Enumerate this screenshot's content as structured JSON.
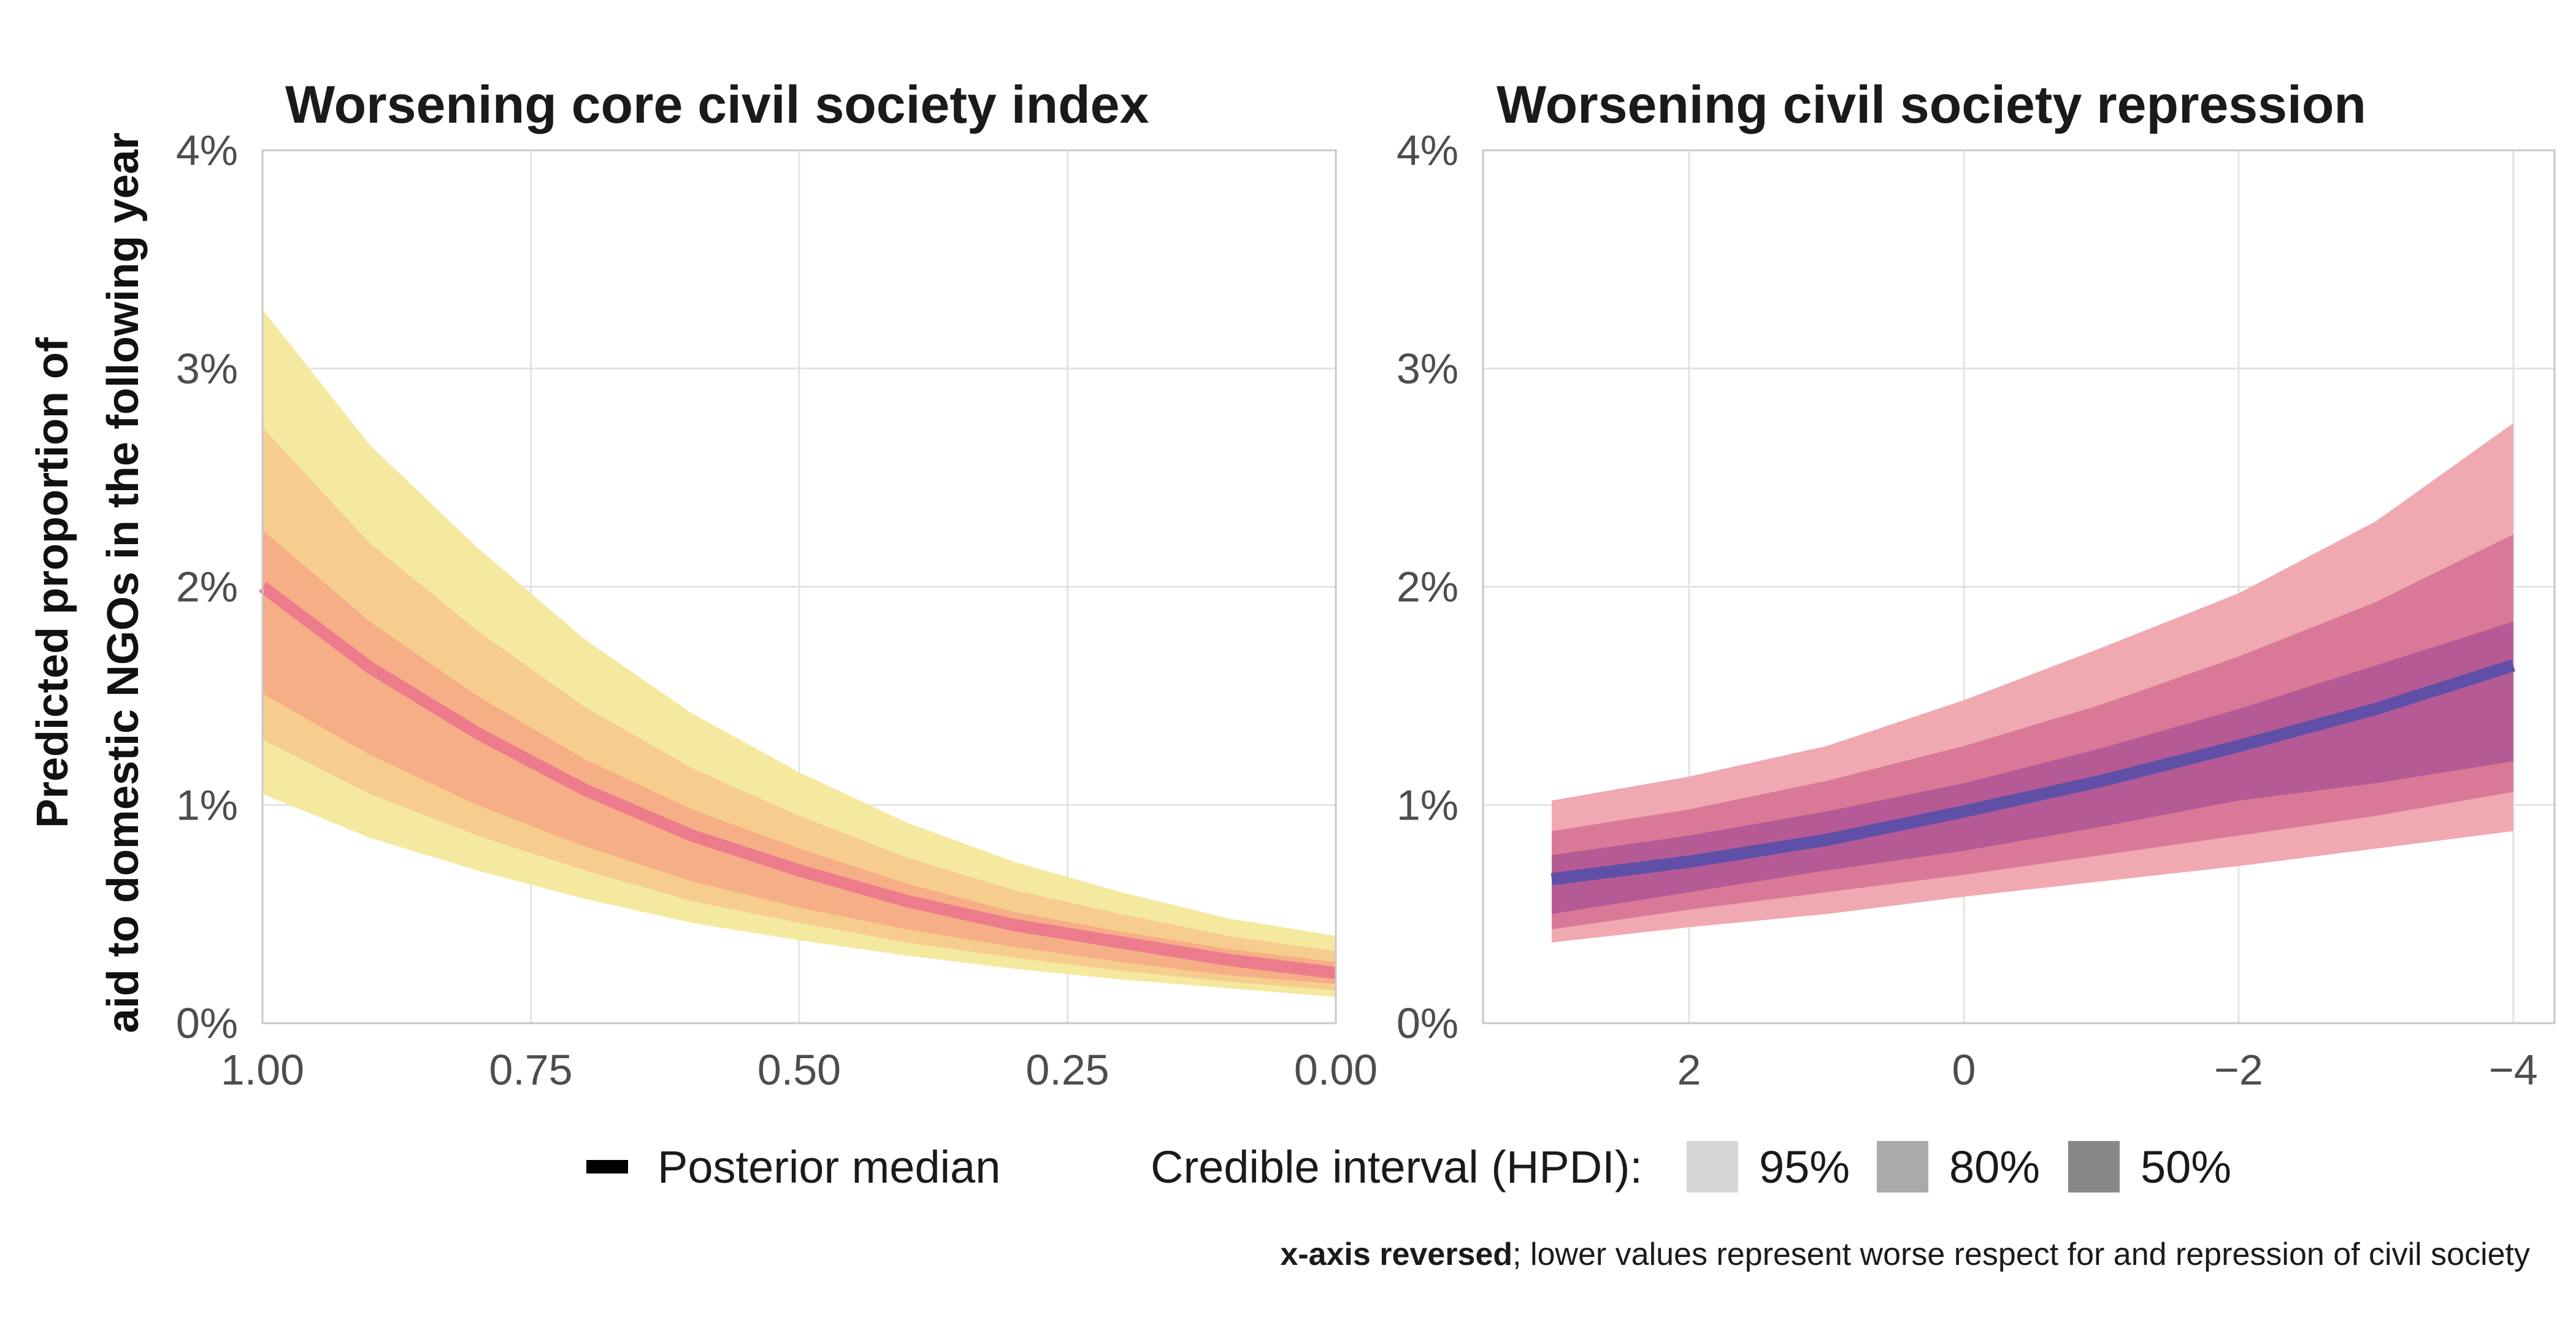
{
  "y_axis_label_lines": [
    "Predicted proportion of",
    "aid to domestic NGOs in the following year"
  ],
  "legend": {
    "median_label": "Posterior median",
    "interval_title": "Credible interval (HPDI):",
    "levels": [
      "95%",
      "80%",
      "50%"
    ],
    "swatch_colors": [
      "#d6d6d6",
      "#aaaaaa",
      "#888888"
    ]
  },
  "caption": {
    "bold": "x-axis reversed",
    "rest": "; lower values represent worse respect for and repression of civil society"
  },
  "chart_data": [
    {
      "type": "area",
      "title": "Worsening core civil society index",
      "xlabel": "",
      "ylabel": "Predicted proportion of aid to domestic NGOs in the following year",
      "x_reversed": true,
      "xlim": [
        1.0,
        0.0
      ],
      "ylim": [
        0,
        4
      ],
      "y_unit": "%",
      "grid": true,
      "x_ticks": [
        1.0,
        0.75,
        0.5,
        0.25,
        0.0
      ],
      "x_tick_labels": [
        "1.00",
        "0.75",
        "0.50",
        "0.25",
        "0.00"
      ],
      "y_ticks": [
        0,
        1,
        2,
        3,
        4
      ],
      "y_tick_labels": [
        "0%",
        "1%",
        "2%",
        "3%",
        "4%"
      ],
      "colors": {
        "band95": "#f5e9a0",
        "band80": "#f6cd8f",
        "band50": "#f6ae86",
        "median": "#ec7c8c"
      },
      "x": [
        1.0,
        0.9,
        0.8,
        0.7,
        0.6,
        0.5,
        0.4,
        0.3,
        0.2,
        0.1,
        0.0
      ],
      "series": [
        {
          "name": "Posterior median",
          "values": [
            2.0,
            1.63,
            1.33,
            1.07,
            0.86,
            0.7,
            0.56,
            0.45,
            0.37,
            0.29,
            0.23
          ]
        },
        {
          "name": "95%",
          "lower": [
            1.05,
            0.85,
            0.7,
            0.57,
            0.46,
            0.38,
            0.31,
            0.25,
            0.2,
            0.16,
            0.12
          ],
          "upper": [
            3.27,
            2.65,
            2.18,
            1.76,
            1.42,
            1.15,
            0.92,
            0.74,
            0.6,
            0.48,
            0.4
          ]
        },
        {
          "name": "80%",
          "lower": [
            1.3,
            1.05,
            0.86,
            0.7,
            0.56,
            0.46,
            0.37,
            0.3,
            0.24,
            0.19,
            0.15
          ],
          "upper": [
            2.73,
            2.2,
            1.8,
            1.45,
            1.17,
            0.95,
            0.76,
            0.61,
            0.5,
            0.4,
            0.33
          ]
        },
        {
          "name": "50%",
          "lower": [
            1.51,
            1.23,
            1.0,
            0.81,
            0.65,
            0.53,
            0.43,
            0.35,
            0.28,
            0.22,
            0.18
          ],
          "upper": [
            2.26,
            1.84,
            1.5,
            1.21,
            0.98,
            0.8,
            0.64,
            0.51,
            0.42,
            0.34,
            0.28
          ]
        }
      ]
    },
    {
      "type": "area",
      "title": "Worsening civil society repression",
      "xlabel": "",
      "ylabel": "",
      "x_reversed": true,
      "xlim": [
        3.5,
        -4.3
      ],
      "ylim": [
        0,
        4
      ],
      "y_unit": "%",
      "grid": true,
      "x_ticks": [
        2,
        0,
        -2,
        -4
      ],
      "x_tick_labels": [
        "2",
        "0",
        "−2",
        "−4"
      ],
      "y_ticks": [
        0,
        1,
        2,
        3,
        4
      ],
      "y_tick_labels": [
        "0%",
        "1%",
        "2%",
        "3%",
        "4%"
      ],
      "colors": {
        "band95": "#f0a9b0",
        "band80": "#da7997",
        "band50": "#b65a95",
        "median": "#5f4fa6"
      },
      "x": [
        3.0,
        2.0,
        1.0,
        0.0,
        -1.0,
        -2.0,
        -3.0,
        -4.0
      ],
      "series": [
        {
          "name": "Posterior median",
          "values": [
            0.66,
            0.74,
            0.84,
            0.97,
            1.11,
            1.27,
            1.44,
            1.64
          ]
        },
        {
          "name": "95%",
          "lower": [
            0.37,
            0.44,
            0.5,
            0.58,
            0.65,
            0.72,
            0.8,
            0.88
          ],
          "upper": [
            1.02,
            1.13,
            1.27,
            1.48,
            1.72,
            1.97,
            2.3,
            2.75
          ]
        },
        {
          "name": "80%",
          "lower": [
            0.43,
            0.52,
            0.6,
            0.68,
            0.77,
            0.86,
            0.95,
            1.06
          ],
          "upper": [
            0.88,
            0.98,
            1.11,
            1.27,
            1.46,
            1.68,
            1.93,
            2.24
          ]
        },
        {
          "name": "50%",
          "lower": [
            0.5,
            0.6,
            0.7,
            0.79,
            0.9,
            1.02,
            1.1,
            1.2
          ],
          "upper": [
            0.77,
            0.86,
            0.97,
            1.1,
            1.26,
            1.44,
            1.64,
            1.84
          ]
        }
      ]
    }
  ]
}
